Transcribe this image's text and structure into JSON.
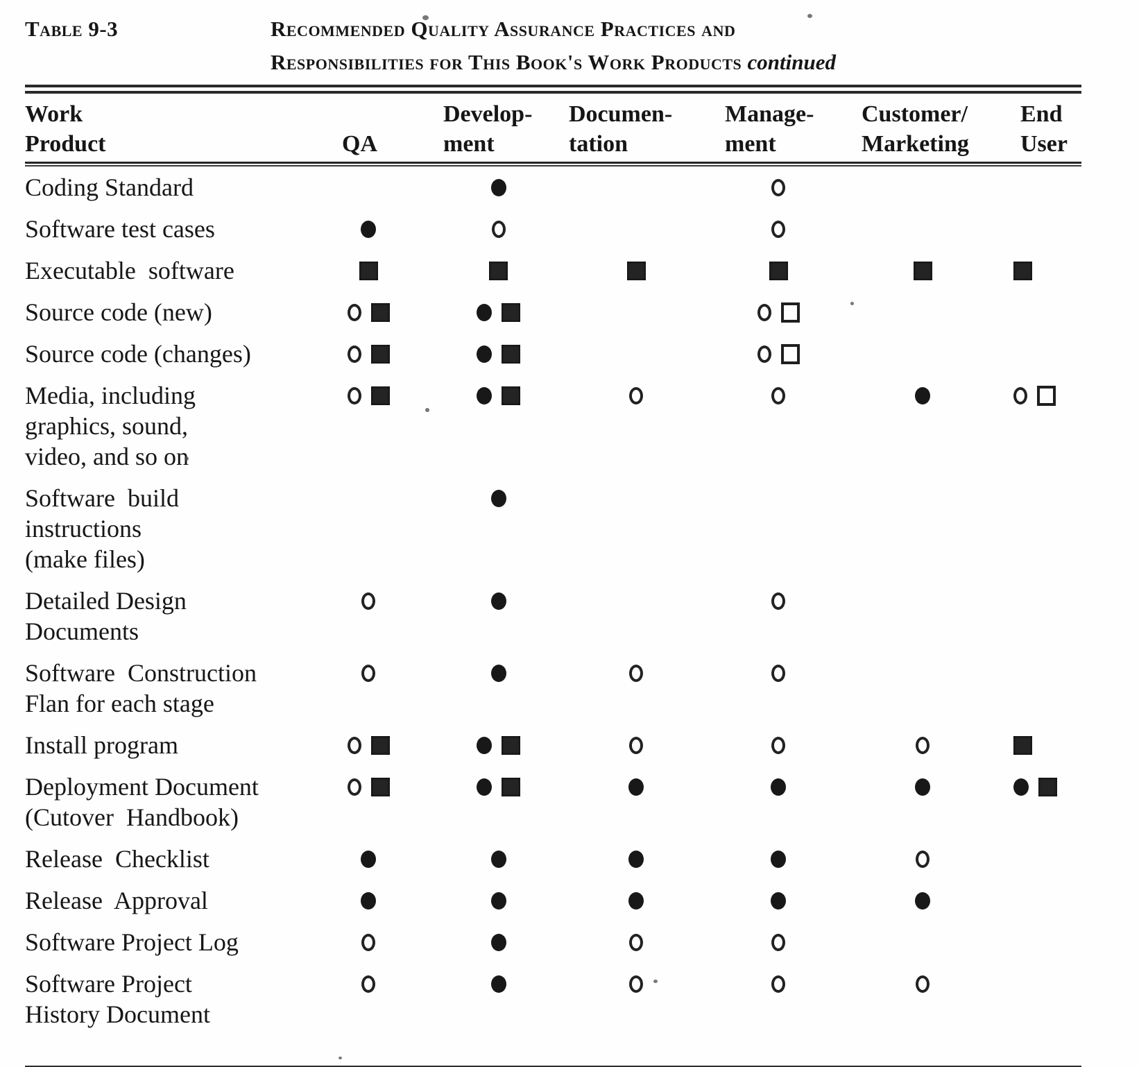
{
  "page": {
    "label": "Table 9-3",
    "title_line1": "Recommended Quality Assurance Practices and",
    "title_line2": "Responsibilities for This Book's Work Products",
    "title_continued": "continued"
  },
  "symbols": {
    "filled-circle": "●",
    "open-circle": "○",
    "filled-square": "■",
    "open-square": "□"
  },
  "table": {
    "columns": [
      {
        "slug": "work-product",
        "lines": [
          "Work",
          "Product"
        ]
      },
      {
        "slug": "qa",
        "lines": [
          "QA"
        ]
      },
      {
        "slug": "development",
        "lines": [
          "Develop-",
          "ment"
        ]
      },
      {
        "slug": "documentation",
        "lines": [
          "Documen-",
          "tation"
        ]
      },
      {
        "slug": "management",
        "lines": [
          "Manage-",
          "ment"
        ]
      },
      {
        "slug": "customer-marketing",
        "lines": [
          "Customer/",
          "Marketing"
        ]
      },
      {
        "slug": "end-user",
        "lines": [
          "End",
          "User"
        ]
      }
    ],
    "rows": [
      {
        "product_lines": [
          "Coding Standard"
        ],
        "cells": [
          [],
          [
            "filled-circle"
          ],
          [],
          [
            "open-circle"
          ],
          [],
          []
        ]
      },
      {
        "product_lines": [
          "Software test cases"
        ],
        "cells": [
          [
            "filled-circle"
          ],
          [
            "open-circle"
          ],
          [],
          [
            "open-circle"
          ],
          [],
          []
        ]
      },
      {
        "product_lines": [
          "Executable  software"
        ],
        "cells": [
          [
            "filled-square"
          ],
          [
            "filled-square"
          ],
          [
            "filled-square"
          ],
          [
            "filled-square"
          ],
          [
            "filled-square"
          ],
          [
            "filled-square"
          ]
        ]
      },
      {
        "product_lines": [
          "Source code (new)"
        ],
        "cells": [
          [
            "open-circle",
            "filled-square"
          ],
          [
            "filled-circle",
            "filled-square"
          ],
          [],
          [
            "open-circle",
            "open-square"
          ],
          [],
          []
        ]
      },
      {
        "product_lines": [
          "Source code (changes)"
        ],
        "cells": [
          [
            "open-circle",
            "filled-square"
          ],
          [
            "filled-circle",
            "filled-square"
          ],
          [],
          [
            "open-circle",
            "open-square"
          ],
          [],
          []
        ]
      },
      {
        "product_lines": [
          "Media, including",
          "graphics, sound,",
          "video, and so on"
        ],
        "cells": [
          [
            "open-circle",
            "filled-square"
          ],
          [
            "filled-circle",
            "filled-square"
          ],
          [
            "open-circle"
          ],
          [
            "open-circle"
          ],
          [
            "filled-circle"
          ],
          [
            "open-circle",
            "open-square"
          ]
        ]
      },
      {
        "product_lines": [
          "Software  build",
          "instructions",
          "(make files)"
        ],
        "cells": [
          [],
          [
            "filled-circle"
          ],
          [],
          [],
          [],
          []
        ]
      },
      {
        "product_lines": [
          "Detailed Design",
          "Documents"
        ],
        "cells": [
          [
            "open-circle"
          ],
          [
            "filled-circle"
          ],
          [],
          [
            "open-circle"
          ],
          [],
          []
        ]
      },
      {
        "product_lines": [
          "Software  Construction",
          "Flan for each stage"
        ],
        "cells": [
          [
            "open-circle"
          ],
          [
            "filled-circle"
          ],
          [
            "open-circle"
          ],
          [
            "open-circle"
          ],
          [],
          []
        ]
      },
      {
        "product_lines": [
          "Install program"
        ],
        "cells": [
          [
            "open-circle",
            "filled-square"
          ],
          [
            "filled-circle",
            "filled-square"
          ],
          [
            "open-circle"
          ],
          [
            "open-circle"
          ],
          [
            "open-circle"
          ],
          [
            "filled-square"
          ]
        ]
      },
      {
        "product_lines": [
          "Deployment Document",
          "(Cutover  Handbook)"
        ],
        "cells": [
          [
            "open-circle",
            "filled-square"
          ],
          [
            "filled-circle",
            "filled-square"
          ],
          [
            "filled-circle"
          ],
          [
            "filled-circle"
          ],
          [
            "filled-circle"
          ],
          [
            "filled-circle",
            "filled-square"
          ]
        ]
      },
      {
        "product_lines": [
          "Release  Checklist"
        ],
        "cells": [
          [
            "filled-circle"
          ],
          [
            "filled-circle"
          ],
          [
            "filled-circle"
          ],
          [
            "filled-circle"
          ],
          [
            "open-circle"
          ],
          []
        ]
      },
      {
        "product_lines": [
          "Release  Approval"
        ],
        "cells": [
          [
            "filled-circle"
          ],
          [
            "filled-circle"
          ],
          [
            "filled-circle"
          ],
          [
            "filled-circle"
          ],
          [
            "filled-circle"
          ],
          []
        ]
      },
      {
        "product_lines": [
          "Software Project Log"
        ],
        "cells": [
          [
            "open-circle"
          ],
          [
            "filled-circle"
          ],
          [
            "open-circle"
          ],
          [
            "open-circle"
          ],
          [],
          []
        ]
      },
      {
        "product_lines": [
          "Software Project",
          "History Document"
        ],
        "cells": [
          [
            "open-circle"
          ],
          [
            "filled-circle"
          ],
          [
            "open-circle"
          ],
          [
            "open-circle"
          ],
          [
            "open-circle"
          ],
          []
        ]
      }
    ]
  }
}
